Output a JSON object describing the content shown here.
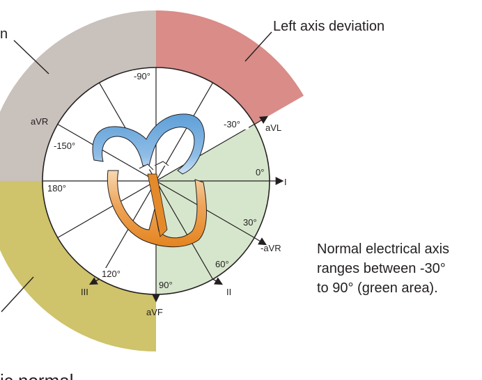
{
  "diagram": {
    "sectors": {
      "left_axis": {
        "color": "#d98c88"
      },
      "right_axis": {
        "color": "#c9c1bc"
      },
      "extreme_axis": {
        "color": "#cfc36b"
      },
      "normal_axis": {
        "color": "#d6e6cc"
      }
    },
    "labels": {
      "left_axis_deviation": "Left axis deviation",
      "partial_top_left": "n",
      "partial_bottom": "ic normal"
    },
    "caption": {
      "line1": "Normal electrical axis",
      "line2": "ranges between -30°",
      "line3": "to 90° (green area)."
    },
    "angles": {
      "minus90": "-90°",
      "minus30": "-30°",
      "minus150": "-150°",
      "zero": "0°",
      "one80": "180°",
      "thirty": "30°",
      "sixty": "60°",
      "ninety": "90°",
      "one20": "120°"
    },
    "leads": {
      "avr": "aVR",
      "avl": "aVL",
      "lead1": "I",
      "minus_avr": "-aVR",
      "lead2": "II",
      "lead3": "III",
      "avf": "aVF"
    },
    "heart": {
      "atria_color": "#6fa8dc",
      "ventricle_color": "#e58a2a"
    }
  }
}
